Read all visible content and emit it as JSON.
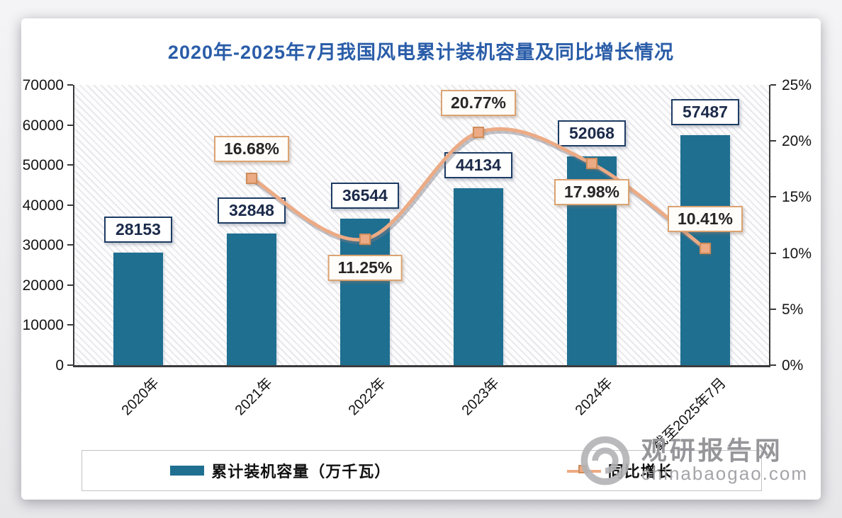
{
  "title": "2020年-2025年7月我国风电累计装机容量及同比增长情况",
  "watermark": {
    "site_name": "观研报告网",
    "site_url": "chinabaogao.com",
    "logo": "ring-swirl-logo"
  },
  "colors": {
    "bar": "#1f6f91",
    "line": "#ecab85",
    "marker_border": "#cf8c5a",
    "title_text": "#2a5da8",
    "bar_label_border": "#1c3b63",
    "pct_label_border": "#dba372"
  },
  "legend": {
    "items": [
      {
        "label": "累计装机容量（万千瓦）",
        "swatch": "bar"
      },
      {
        "label": "同比增长",
        "swatch": "line-marker"
      }
    ]
  },
  "chart_data": {
    "type": "bar",
    "subtype": "bar+line-combo",
    "title": "2020年-2025年7月我国风电累计装机容量及同比增长情况",
    "categories": [
      "2020年",
      "2021年",
      "2022年",
      "2023年",
      "2024年",
      "截至2025年7月"
    ],
    "series": [
      {
        "name": "累计装机容量（万千瓦）",
        "type": "bar",
        "axis": "left",
        "values": [
          28153,
          32848,
          36544,
          44134,
          52068,
          57487
        ],
        "data_labels": [
          "28153",
          "32848",
          "36544",
          "44134",
          "52068",
          "57487"
        ]
      },
      {
        "name": "同比增长",
        "type": "line",
        "axis": "right",
        "values": [
          null,
          16.68,
          11.25,
          20.77,
          17.98,
          10.41
        ],
        "data_labels": [
          null,
          "16.68%",
          "11.25%",
          "20.77%",
          "17.98%",
          "10.41%"
        ]
      }
    ],
    "left_axis": {
      "min": 0,
      "max": 70000,
      "step": 10000,
      "ticks": [
        "70000",
        "60000",
        "50000",
        "40000",
        "30000",
        "20000",
        "10000",
        "0"
      ]
    },
    "right_axis": {
      "min": 0,
      "max": 25,
      "step": 5,
      "ticks": [
        "25%",
        "20%",
        "15%",
        "10%",
        "5%",
        "0%"
      ]
    },
    "grid": false,
    "plot_background": "diagonal-hatch",
    "legend_position": "bottom"
  }
}
